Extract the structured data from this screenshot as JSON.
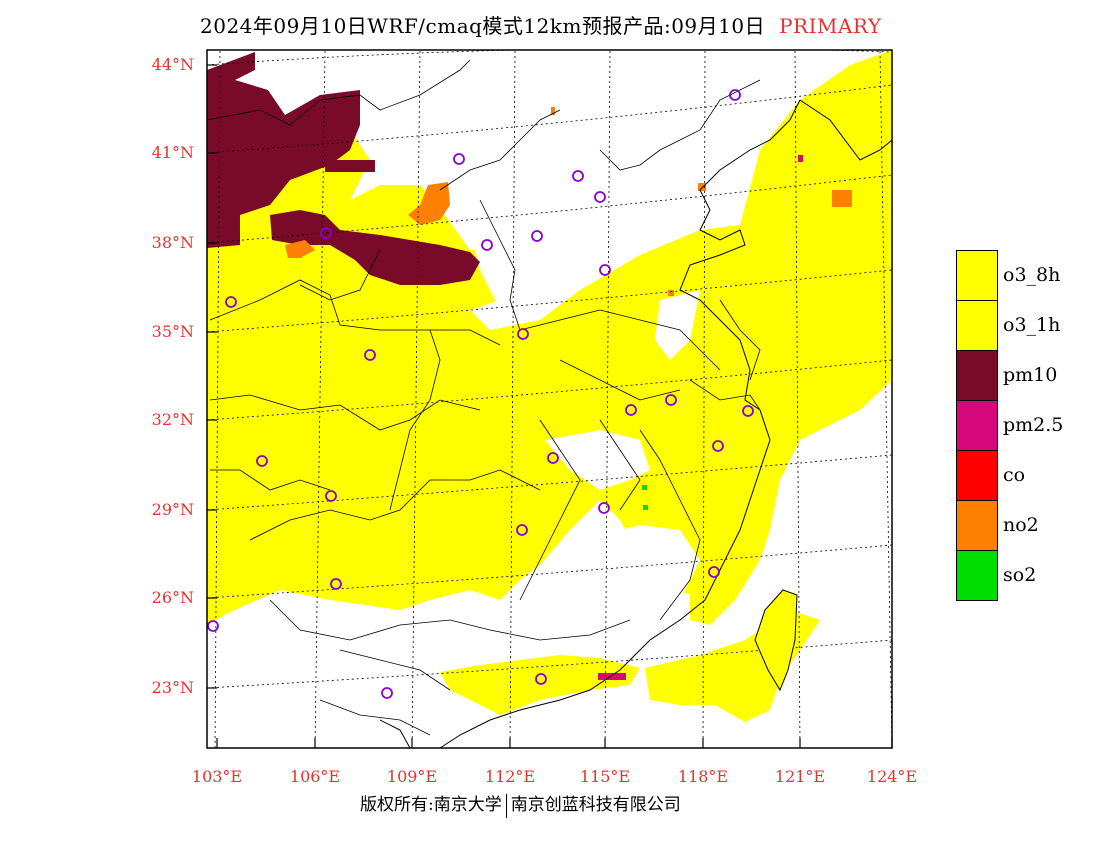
{
  "header": {
    "title": "2024年09月10日WRF/cmaq模式12km预报产品:09月10日",
    "tag": "PRIMARY"
  },
  "axes": {
    "lat_labels": [
      "44°N",
      "41°N",
      "38°N",
      "35°N",
      "32°N",
      "29°N",
      "26°N",
      "23°N"
    ],
    "lon_labels": [
      "103°E",
      "106°E",
      "109°E",
      "112°E",
      "115°E",
      "118°E",
      "121°E",
      "124°E"
    ]
  },
  "legend": {
    "items": [
      {
        "label": "o3_8h",
        "color": "#ffff00"
      },
      {
        "label": "o3_1h",
        "color": "#ffff00"
      },
      {
        "label": "pm10",
        "color": "#7a0a2a"
      },
      {
        "label": "pm2.5",
        "color": "#d4087a"
      },
      {
        "label": "co",
        "color": "#ff0000"
      },
      {
        "label": "no2",
        "color": "#ff7f00"
      },
      {
        "label": "so2",
        "color": "#00dd00"
      }
    ]
  },
  "footer": {
    "left": "版权所有:南京大学",
    "right": "南京创蓝科技有限公司"
  },
  "colors": {
    "o3": "#ffff00",
    "pm10": "#7a0a2a",
    "pm25": "#d4087a",
    "no2": "#ff7f00",
    "so2": "#00dd00",
    "station": "#8a00d4",
    "accent": "#e8322e"
  }
}
